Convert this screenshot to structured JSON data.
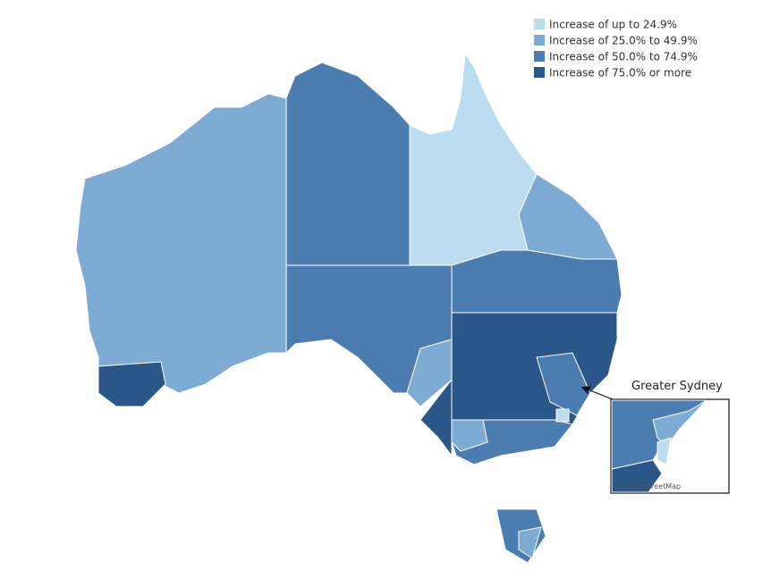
{
  "legend": {
    "items": [
      {
        "label": "Increase of up to 24.9%",
        "color": "#bcdcef"
      },
      {
        "label": "Increase of 25.0% to 49.9%",
        "color": "#7eabd4"
      },
      {
        "label": "Increase of 50.0% to 74.9%",
        "color": "#4c7db0"
      },
      {
        "label": "Increase of 75.0% or more",
        "color": "#2a5787"
      }
    ]
  },
  "inset": {
    "label": "Greater Sydney",
    "attribution": "© OpenStreetMap"
  }
}
